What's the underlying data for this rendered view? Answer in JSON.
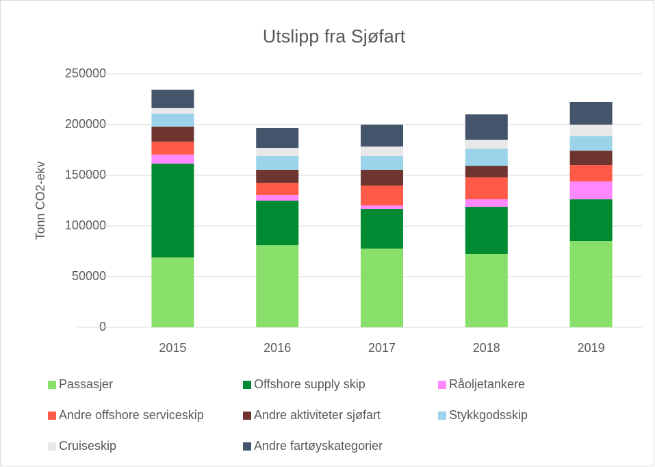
{
  "chart_data": {
    "type": "stacked_bar",
    "title": "Utslipp fra Sjøfart",
    "y_label": "Tonn CO2-ekv",
    "categories": [
      "2015",
      "2016",
      "2017",
      "2018",
      "2019"
    ],
    "series": [
      {
        "name": "Passasjer",
        "color": "#88e06a",
        "values": [
          69000,
          81000,
          77700,
          72300,
          85100
        ]
      },
      {
        "name": "Offshore supply skip",
        "color": "#008a32",
        "values": [
          92600,
          44000,
          39200,
          46600,
          41200
        ]
      },
      {
        "name": "Råoljetankere",
        "color": "#ff88ff",
        "values": [
          8800,
          5400,
          3400,
          7400,
          17600
        ]
      },
      {
        "name": "Andre offshore serviceskip",
        "color": "#ff5a47",
        "values": [
          12800,
          12200,
          19600,
          21600,
          16200
        ]
      },
      {
        "name": "Andre aktiviteter sjøfart",
        "color": "#6e3530",
        "values": [
          14900,
          12800,
          15500,
          11500,
          14200
        ]
      },
      {
        "name": "Stykkgodsskip",
        "color": "#9bd3ea",
        "values": [
          12800,
          13500,
          13500,
          16900,
          14200
        ]
      },
      {
        "name": "Cruiseskip",
        "color": "#e8e8e8",
        "values": [
          5400,
          8100,
          9500,
          8800,
          11500
        ]
      },
      {
        "name": "Andre fartøyskategorier",
        "color": "#44546a",
        "values": [
          18200,
          19600,
          21600,
          25000,
          22300
        ]
      }
    ],
    "ylim": [
      0,
      250000
    ],
    "yticks": [
      0,
      50000,
      100000,
      150000,
      200000,
      250000
    ],
    "grid": true
  }
}
